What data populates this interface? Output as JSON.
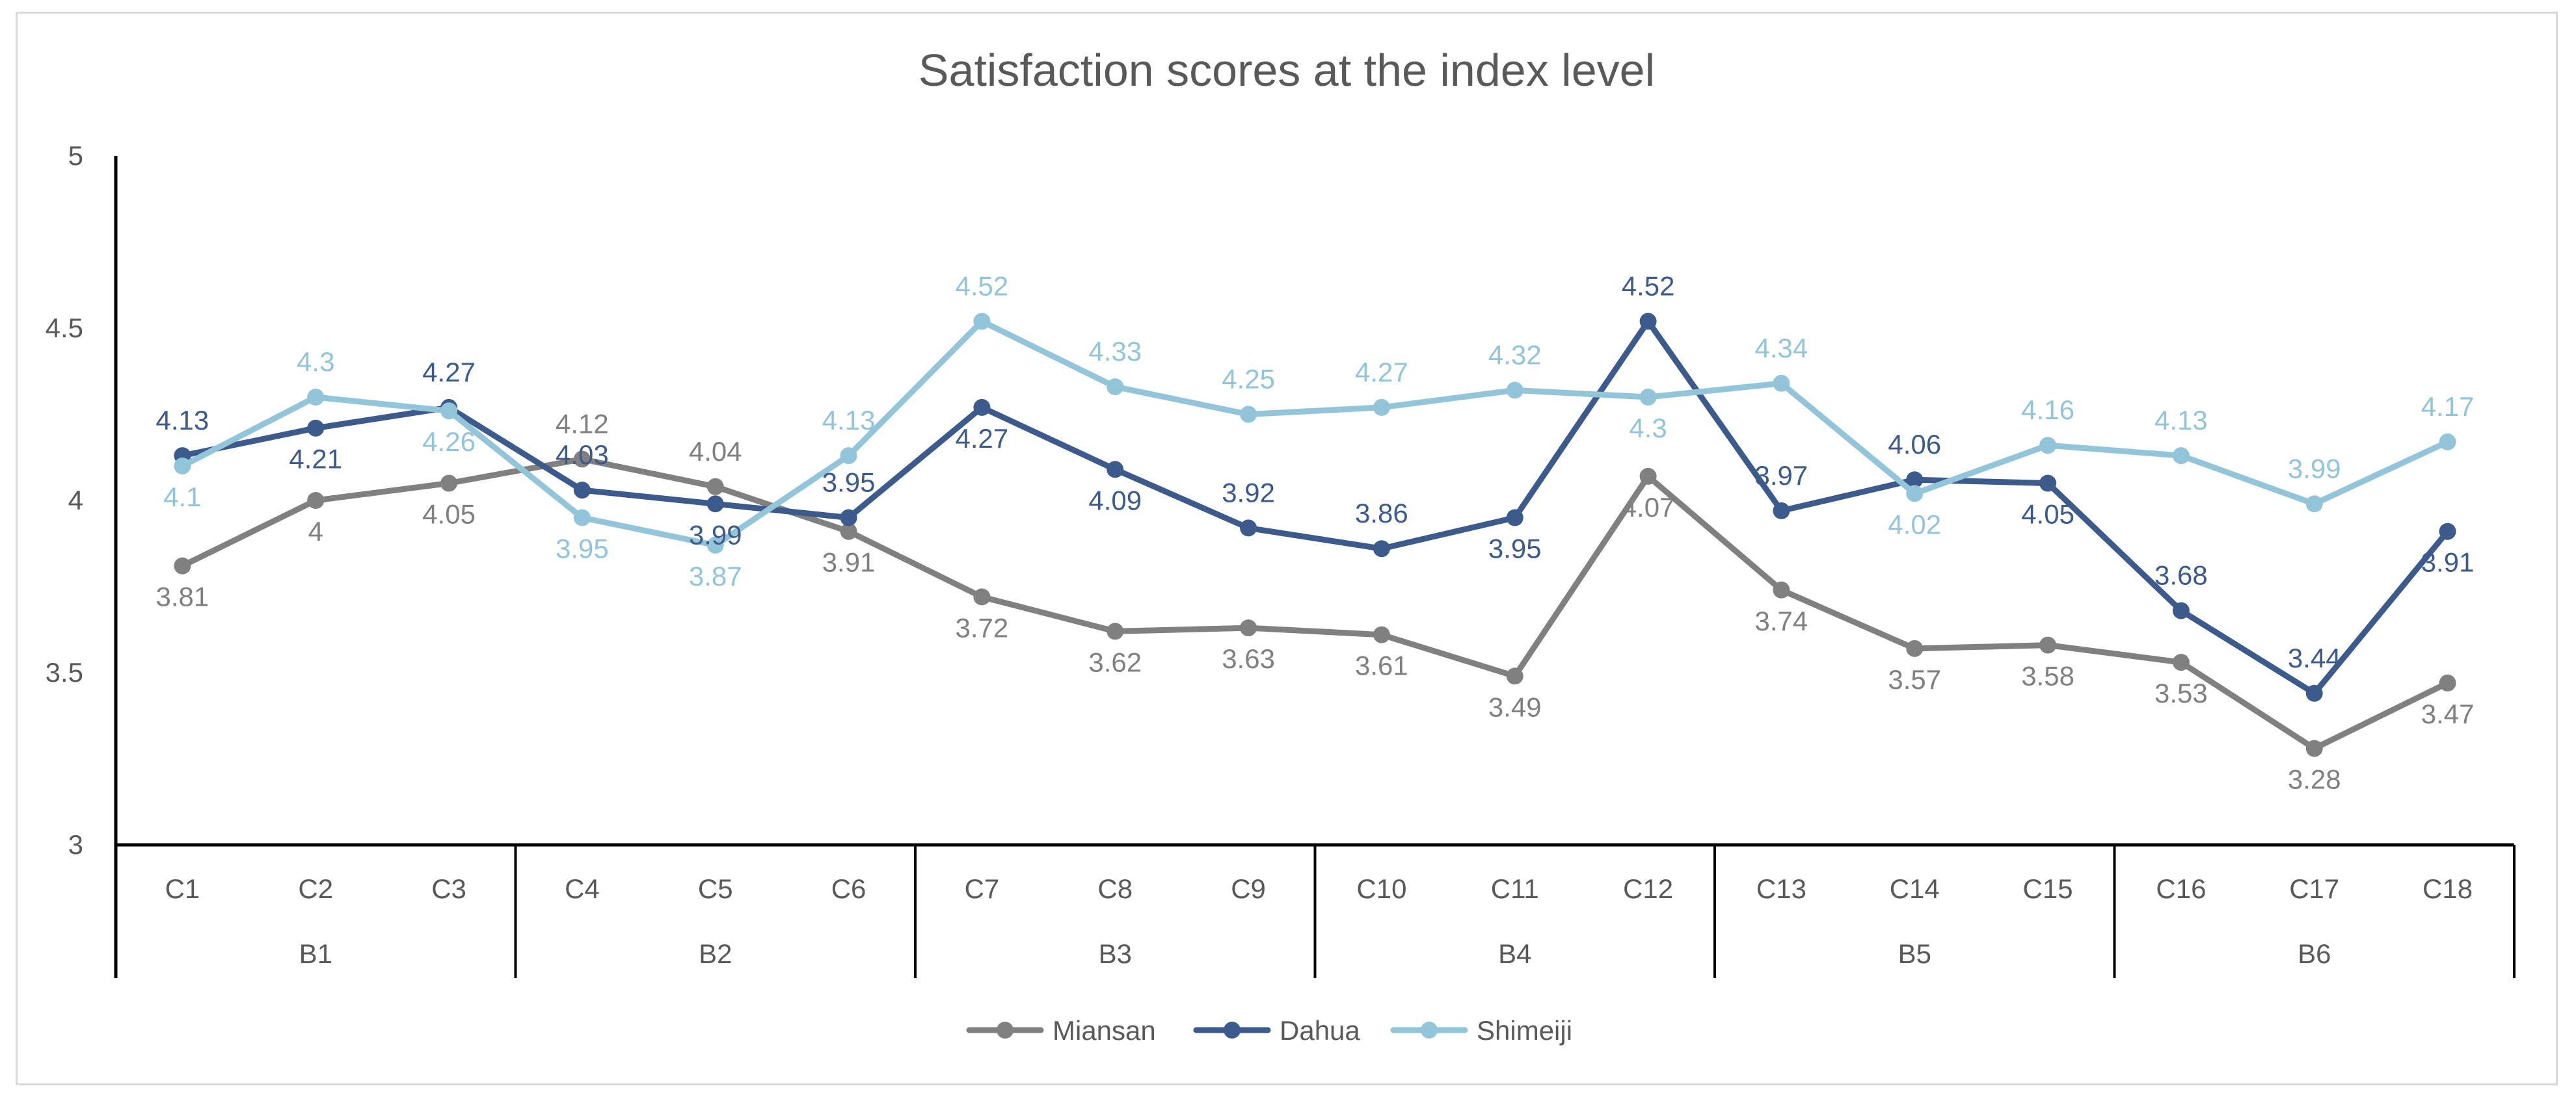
{
  "chart_data": {
    "type": "line",
    "title": "Satisfaction scores at the index level",
    "xlabel": "",
    "ylabel": "",
    "ylim": [
      3,
      5
    ],
    "yticks": [
      3,
      3.5,
      4,
      4.5,
      5
    ],
    "ytick_labels": [
      "3",
      "3.5",
      "4",
      "4.5",
      "5"
    ],
    "grid": false,
    "legend_position": "bottom-center",
    "categories": [
      "C1",
      "C2",
      "C3",
      "C4",
      "C5",
      "C6",
      "C7",
      "C8",
      "C9",
      "C10",
      "C11",
      "C12",
      "C13",
      "C14",
      "C15",
      "C16",
      "C17",
      "C18"
    ],
    "groups": [
      {
        "name": "B1",
        "categories": [
          "C1",
          "C2",
          "C3"
        ]
      },
      {
        "name": "B2",
        "categories": [
          "C4",
          "C5",
          "C6"
        ]
      },
      {
        "name": "B3",
        "categories": [
          "C7",
          "C8",
          "C9"
        ]
      },
      {
        "name": "B4",
        "categories": [
          "C10",
          "C11",
          "C12"
        ]
      },
      {
        "name": "B5",
        "categories": [
          "C13",
          "C14",
          "C15"
        ]
      },
      {
        "name": "B6",
        "categories": [
          "C16",
          "C17",
          "C18"
        ]
      }
    ],
    "series": [
      {
        "name": "Miansan",
        "color": "#808080",
        "values": [
          3.81,
          4,
          4.05,
          4.12,
          4.04,
          3.91,
          3.72,
          3.62,
          3.63,
          3.61,
          3.49,
          4.07,
          3.74,
          3.57,
          3.58,
          3.53,
          3.28,
          3.47
        ],
        "labels": [
          "3.81",
          "4",
          "4.05",
          "4.12",
          "4.04",
          "3.91",
          "3.72",
          "3.62",
          "3.63",
          "3.61",
          "3.49",
          "4.07",
          "3.74",
          "3.57",
          "3.58",
          "3.53",
          "3.28",
          "3.47"
        ]
      },
      {
        "name": "Dahua",
        "color": "#3d5a8c",
        "values": [
          4.13,
          4.21,
          4.27,
          4.03,
          3.99,
          3.95,
          4.27,
          4.09,
          3.92,
          3.86,
          3.95,
          4.52,
          3.97,
          4.06,
          4.05,
          3.68,
          3.44,
          3.91
        ],
        "labels": [
          "4.13",
          "4.21",
          "4.27",
          "4.03",
          "3.99",
          "3.95",
          "4.27",
          "4.09",
          "3.92",
          "3.86",
          "3.95",
          "4.52",
          "3.97",
          "4.06",
          "4.05",
          "3.68",
          "3.44",
          "3.91"
        ]
      },
      {
        "name": "Shimeiji",
        "color": "#92c5d9",
        "values": [
          4.1,
          4.3,
          4.26,
          3.95,
          3.87,
          4.13,
          4.52,
          4.33,
          4.25,
          4.27,
          4.32,
          4.3,
          4.34,
          4.02,
          4.16,
          4.13,
          3.99,
          4.17
        ],
        "labels": [
          "4.1",
          "4.3",
          "4.26",
          "3.95",
          "3.87",
          "4.13",
          "4.52",
          "4.33",
          "4.25",
          "4.27",
          "4.32",
          "4.3",
          "4.34",
          "4.02",
          "4.16",
          "4.13",
          "3.99",
          "4.17"
        ]
      }
    ]
  }
}
